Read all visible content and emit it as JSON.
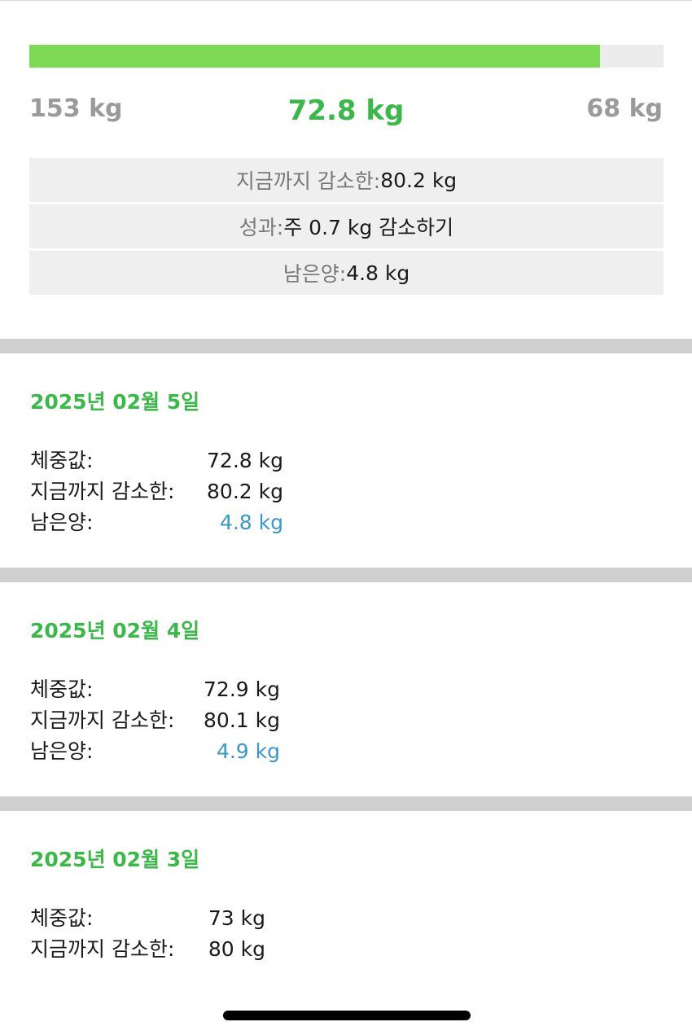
{
  "summary": {
    "progress_fraction": 0.9,
    "start_weight": "153 kg",
    "current_weight": "72.8 kg",
    "goal_weight": "68 kg",
    "stats": [
      {
        "label": "지금까지 감소한: ",
        "value": "80.2 kg"
      },
      {
        "label": "성과: ",
        "value": "주 0.7 kg 감소하기"
      },
      {
        "label": "남은양: ",
        "value": "4.8 kg"
      }
    ]
  },
  "entries": [
    {
      "date": "2025년 02월 5일",
      "weight_label": "체중값:",
      "weight_value": "72.8 kg",
      "lost_label": "지금까지 감소한:",
      "lost_value": "80.2 kg",
      "remaining_label": "남은양:",
      "remaining_value": "4.8 kg"
    },
    {
      "date": "2025년 02월 4일",
      "weight_label": "체중값:",
      "weight_value": "72.9 kg",
      "lost_label": "지금까지 감소한:",
      "lost_value": "80.1 kg",
      "remaining_label": "남은양:",
      "remaining_value": "4.9 kg"
    },
    {
      "date": "2025년 02월 3일",
      "weight_label": "체중값:",
      "weight_value": "73 kg",
      "lost_label": "지금까지 감소한:",
      "lost_value": "80 kg"
    }
  ],
  "colors": {
    "accent_green": "#3cb84a",
    "progress_green": "#7ed957",
    "remaining_blue": "#3a97c9"
  }
}
